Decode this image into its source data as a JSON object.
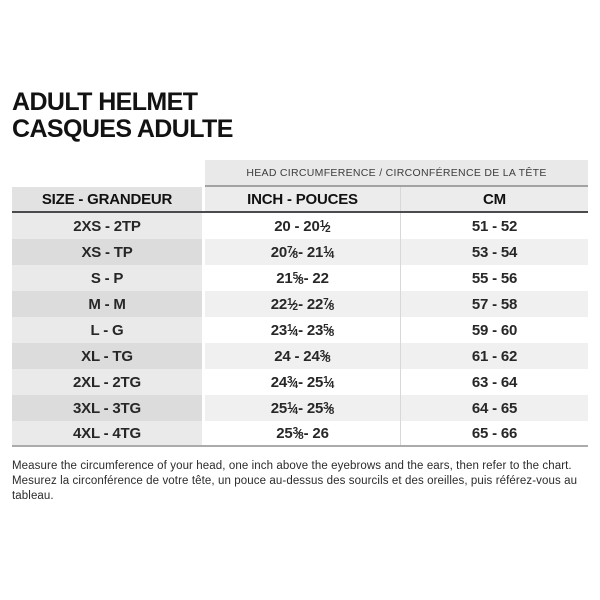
{
  "title": {
    "line1": "ADULT HELMET",
    "line2": "CASQUES ADULTE"
  },
  "table": {
    "span_header": "HEAD CIRCUMFERENCE / CIRCONFÉRENCE DE LA TÊTE",
    "columns": [
      "SIZE - GRANDEUR",
      "INCH - POUCES",
      "CM"
    ],
    "rows": [
      {
        "size": "2XS - 2TP",
        "inch": "20 - 20 1/2",
        "cm": "51 - 52"
      },
      {
        "size": "XS - TP",
        "inch": "20 7/8 - 21 1/4",
        "cm": "53 - 54"
      },
      {
        "size": "S - P",
        "inch": "21 5/8 - 22",
        "cm": "55 - 56"
      },
      {
        "size": "M - M",
        "inch": "22 1/2 - 22 7/8",
        "cm": "57 - 58"
      },
      {
        "size": "L - G",
        "inch": "23 1/4 - 23 5/8",
        "cm": "59 - 60"
      },
      {
        "size": "XL - TG",
        "inch": "24 - 24 3/8",
        "cm": "61 - 62"
      },
      {
        "size": "2XL - 2TG",
        "inch": "24 3/4 - 25 1/4",
        "cm": "63 - 64"
      },
      {
        "size": "3XL - 3TG",
        "inch": "25 1/4 - 25 3/8",
        "cm": "64 - 65"
      },
      {
        "size": "4XL - 4TG",
        "inch": "25 3/8 - 26",
        "cm": "65 - 66"
      }
    ]
  },
  "footer": {
    "line1": "Measure the circumference of your head, one inch above the eyebrows and the ears, then refer to the chart.",
    "line2": "Mesurez la circonférence de votre tête, un pouce au-dessus des sourcils et des oreilles, puis référez-vous au tableau."
  },
  "colors": {
    "header_band_bg": "#e9e9e9",
    "header_row_bg": "#ececec",
    "size_col_bg_odd": "#eaeaea",
    "size_col_bg_even": "#dcdcdc",
    "data_row_bg_even": "#f0f0f0",
    "header_rule": "#4b4b4d",
    "table_bottom_rule": "#ababab",
    "text": "#121212"
  }
}
